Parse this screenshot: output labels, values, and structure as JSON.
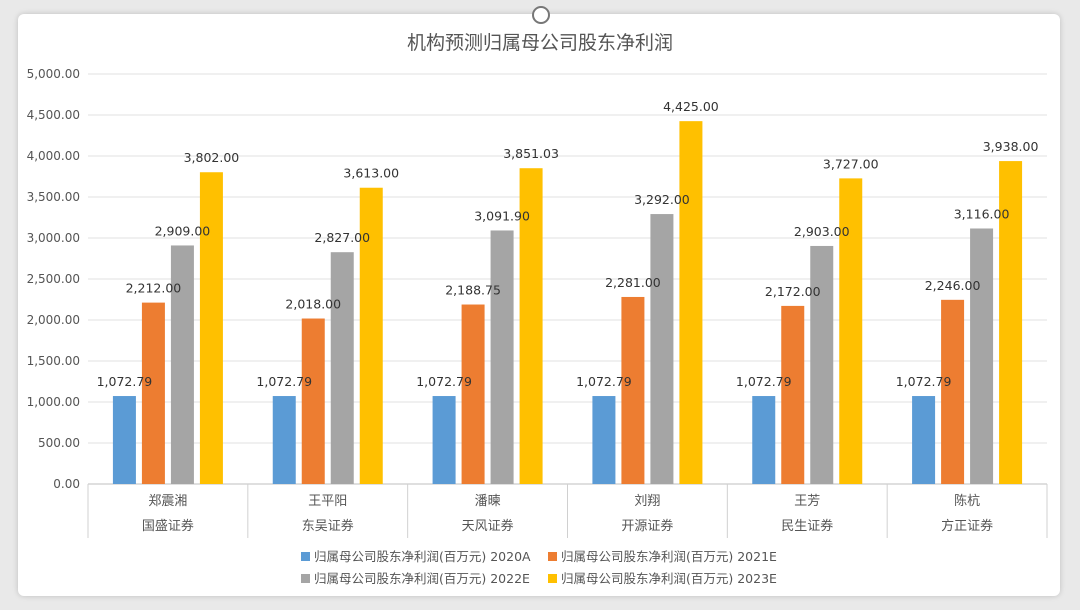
{
  "chart_data": {
    "type": "bar",
    "title": "机构预测归属母公司股东净利润",
    "ylim": [
      0,
      5000
    ],
    "yticks": [
      "0.00",
      "500.00",
      "1,000.00",
      "1,500.00",
      "2,000.00",
      "2,500.00",
      "3,000.00",
      "3,500.00",
      "4,000.00",
      "4,500.00",
      "5,000.00"
    ],
    "grid": true,
    "legend_position": "bottom",
    "categories": [
      {
        "analyst": "郑震湘",
        "broker": "国盛证券"
      },
      {
        "analyst": "王平阳",
        "broker": "东吴证券"
      },
      {
        "analyst": "潘暕",
        "broker": "天风证券"
      },
      {
        "analyst": "刘翔",
        "broker": "开源证券"
      },
      {
        "analyst": "王芳",
        "broker": "民生证券"
      },
      {
        "analyst": "陈杭",
        "broker": "方正证券"
      }
    ],
    "series": [
      {
        "name": "归属母公司股东净利润(百万元) 2020A",
        "color": "#5b9bd5",
        "values": [
          1072.79,
          1072.79,
          1072.79,
          1072.79,
          1072.79,
          1072.79
        ],
        "labels": [
          "1,072.79",
          "1,072.79",
          "1,072.79",
          "1,072.79",
          "1,072.79",
          "1,072.79"
        ]
      },
      {
        "name": "归属母公司股东净利润(百万元) 2021E",
        "color": "#ed7d31",
        "values": [
          2212,
          2018,
          2188.75,
          2281,
          2172,
          2246
        ],
        "labels": [
          "2,212.00",
          "2,018.00",
          "2,188.75",
          "2,281.00",
          "2,172.00",
          "2,246.00"
        ]
      },
      {
        "name": "归属母公司股东净利润(百万元) 2022E",
        "color": "#a5a5a5",
        "values": [
          2909,
          2827,
          3091.9,
          3292,
          2903,
          3116
        ],
        "labels": [
          "2,909.00",
          "2,827.00",
          "3,091.90",
          "3,292.00",
          "2,903.00",
          "3,116.00"
        ]
      },
      {
        "name": "归属母公司股东净利润(百万元) 2023E",
        "color": "#ffc000",
        "values": [
          3802,
          3613,
          3851.03,
          4425,
          3727,
          3938
        ],
        "labels": [
          "3,802.00",
          "3,613.00",
          "3,851.03",
          "4,425.00",
          "3,727.00",
          "3,938.00"
        ]
      }
    ]
  }
}
